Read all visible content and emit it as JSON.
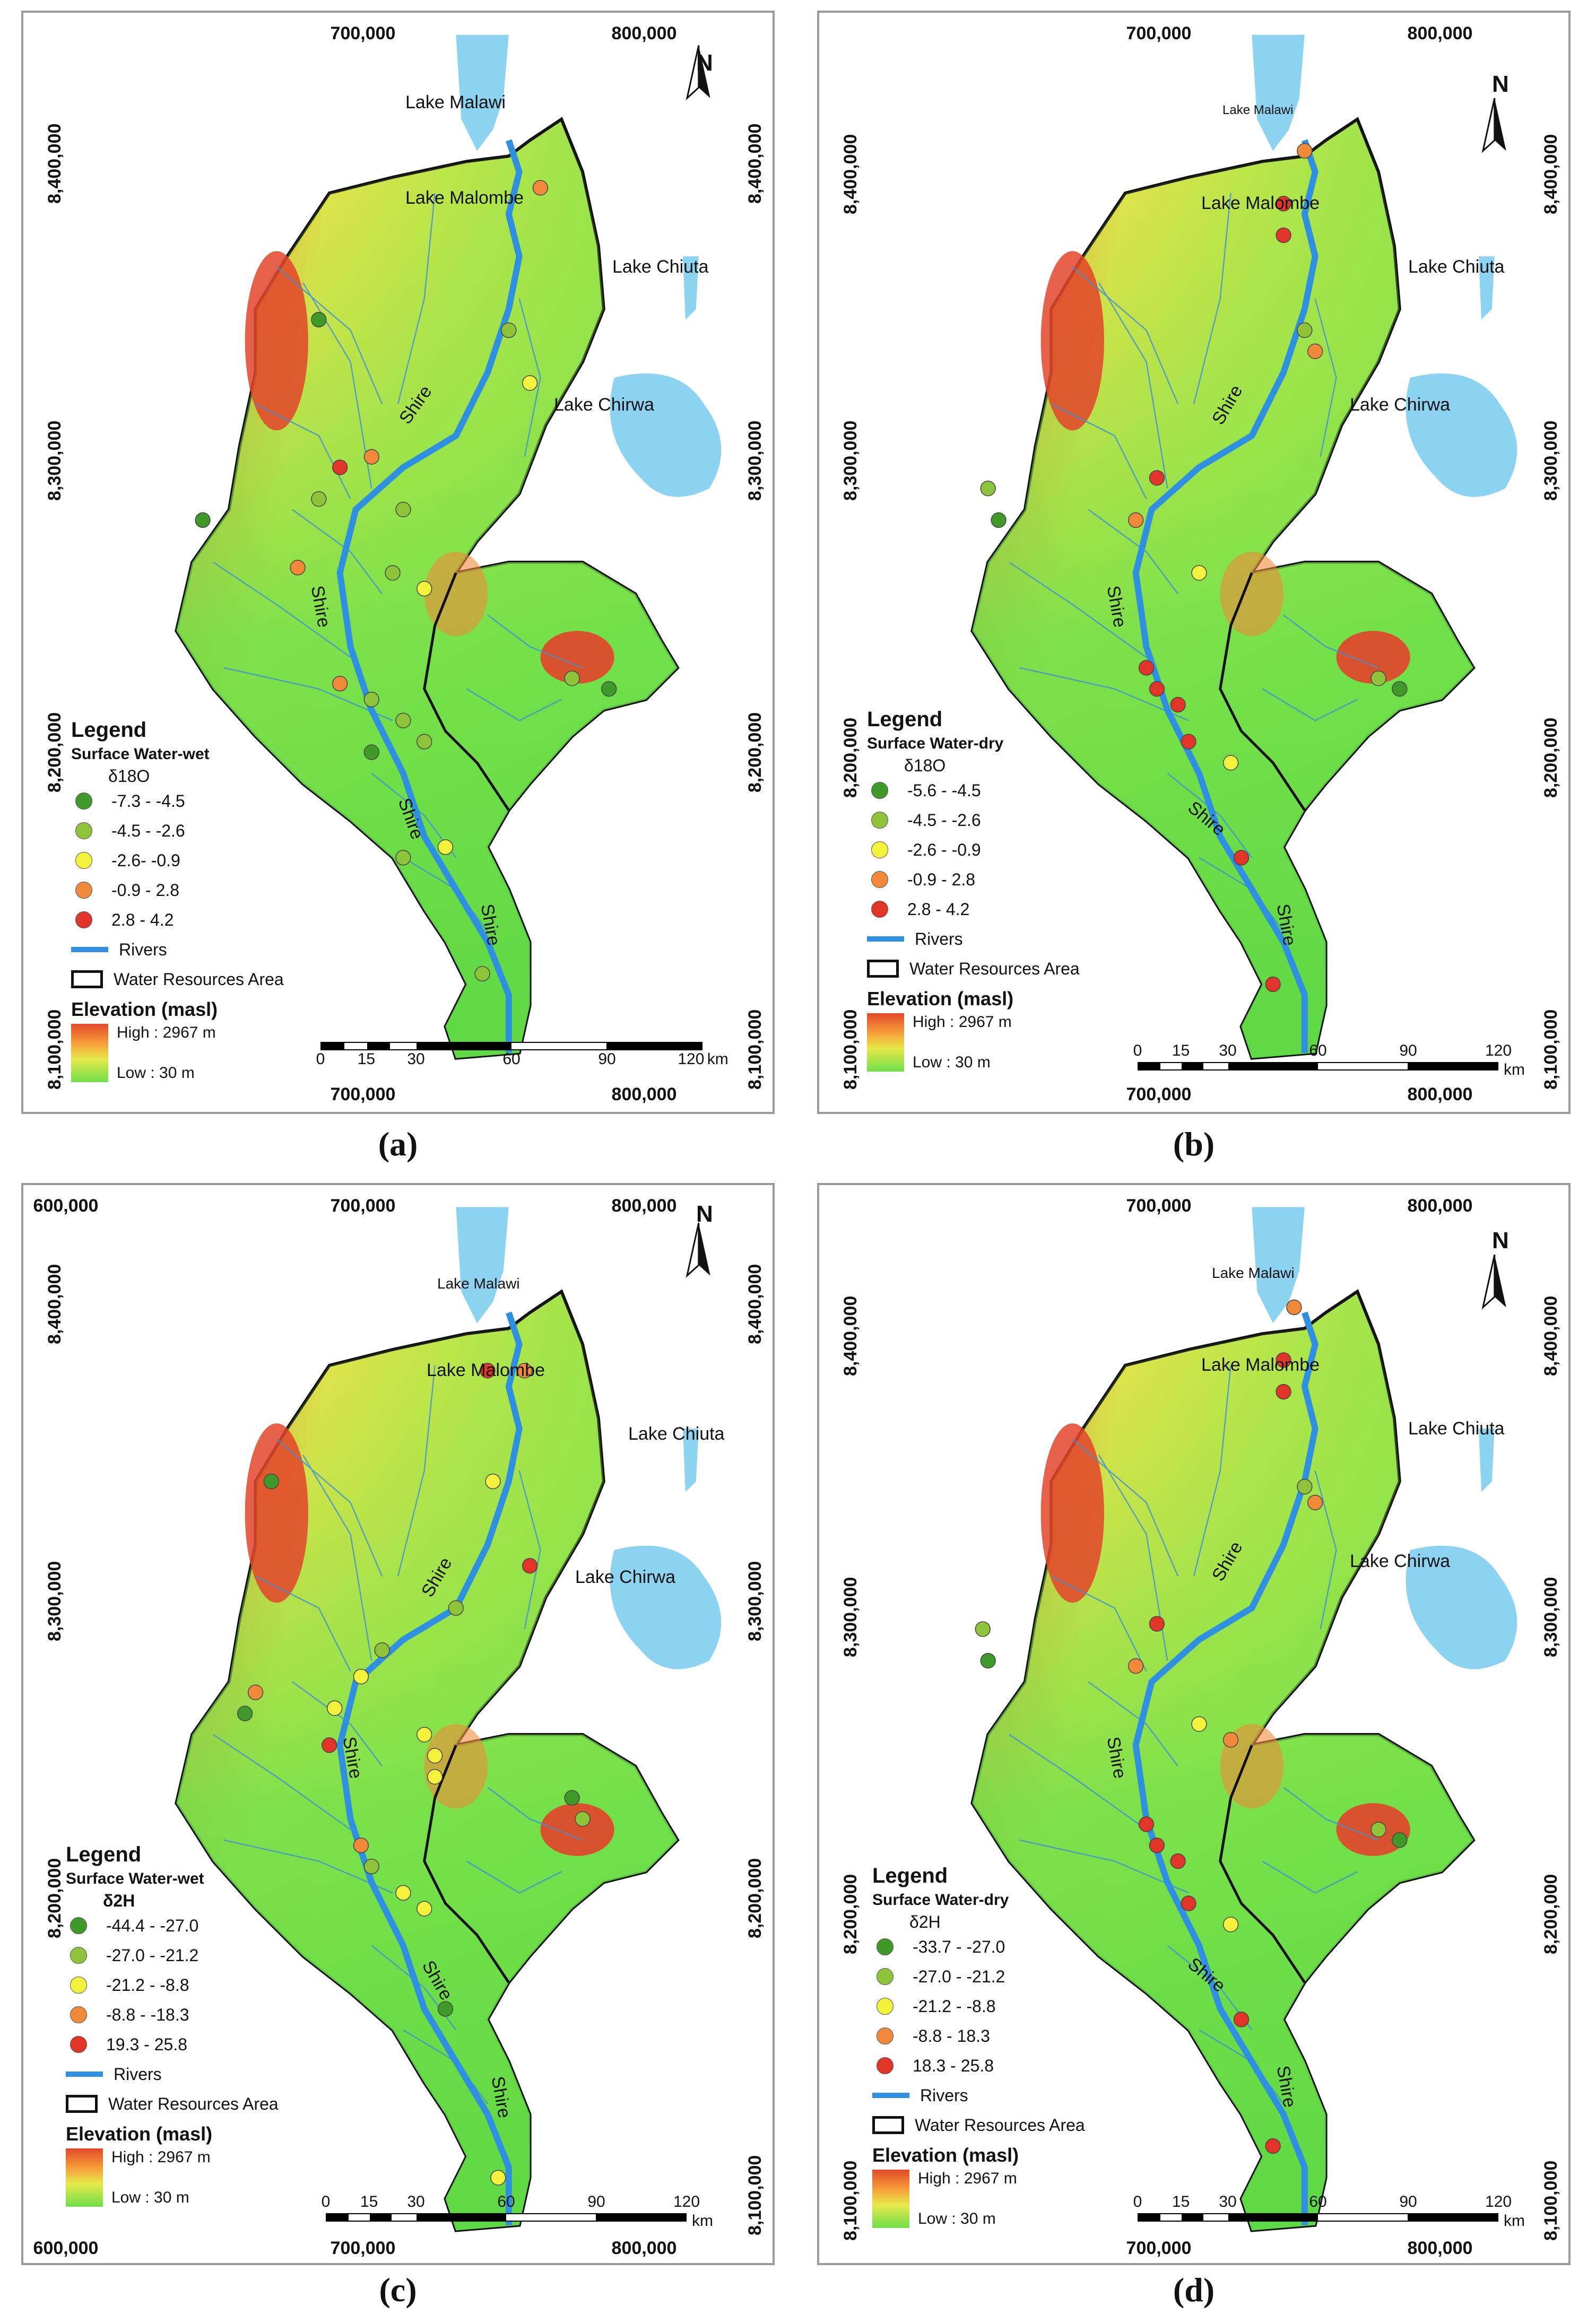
{
  "colors": {
    "dot_dark_green": "#3f9a2a",
    "dot_light_green": "#8fc43a",
    "dot_yellow": "#f4f23a",
    "dot_orange": "#f08a3a",
    "dot_red": "#e2352a",
    "river": "#2f8fe0",
    "lake": "#8cd3f2",
    "elevation_high": "#e34a2a",
    "elevation_low": "#6fe04a"
  },
  "icons": [
    "north-arrow-icon"
  ],
  "common": {
    "lake_malawi": "Lake Malawi",
    "lake_malombe": "Lake Malombe",
    "lake_chiuta": "Lake Chiuta",
    "lake_chirwa": "Lake Chirwa",
    "river_label": "Shire",
    "north": "N",
    "legend_title": "Legend",
    "rivers": "Rivers",
    "wra": "Water Resources Area",
    "elevation_title": "Elevation (masl)",
    "high": "High : 2967 m",
    "low": "Low : 30 m",
    "scale_unit": "km",
    "scale_ticks": [
      "0",
      "15",
      "30",
      "60",
      "90",
      "120"
    ],
    "x_700": "700,000",
    "x_800": "800,000",
    "x_600": "600,000",
    "y_8400": "8,400,000",
    "y_8300": "8,300,000",
    "y_8200": "8,200,000",
    "y_8100": "8,100,000"
  },
  "panels": [
    {
      "caption": "(a)",
      "legend_sub": "Surface Water-wet",
      "isotope": "δ18O",
      "classes": [
        "-7.3 - -4.5",
        "-4.5 - -2.6",
        "-2.6- -0.9",
        "-0.9 - 2.8",
        "2.8 - 4.2"
      ]
    },
    {
      "caption": "(b)",
      "legend_sub": "Surface Water-dry",
      "isotope": "δ18O",
      "classes": [
        "-5.6 - -4.5",
        "-4.5 - -2.6",
        "-2.6 - -0.9",
        "-0.9 - 2.8",
        "2.8 - 4.2"
      ]
    },
    {
      "caption": "(c)",
      "legend_sub": "Surface Water-wet",
      "isotope": "δ2H",
      "classes": [
        "-44.4 - -27.0",
        "-27.0 - -21.2",
        "-21.2 - -8.8",
        "-8.8 - -18.3",
        "19.3 - 25.8"
      ]
    },
    {
      "caption": "(d)",
      "legend_sub": "Surface Water-dry",
      "isotope": "δ2H",
      "classes": [
        "-33.7 - -27.0",
        "-27.0 - -21.2",
        "-21.2 - -8.8",
        "-8.8 - 18.3",
        "18.3 - 25.8"
      ]
    }
  ]
}
